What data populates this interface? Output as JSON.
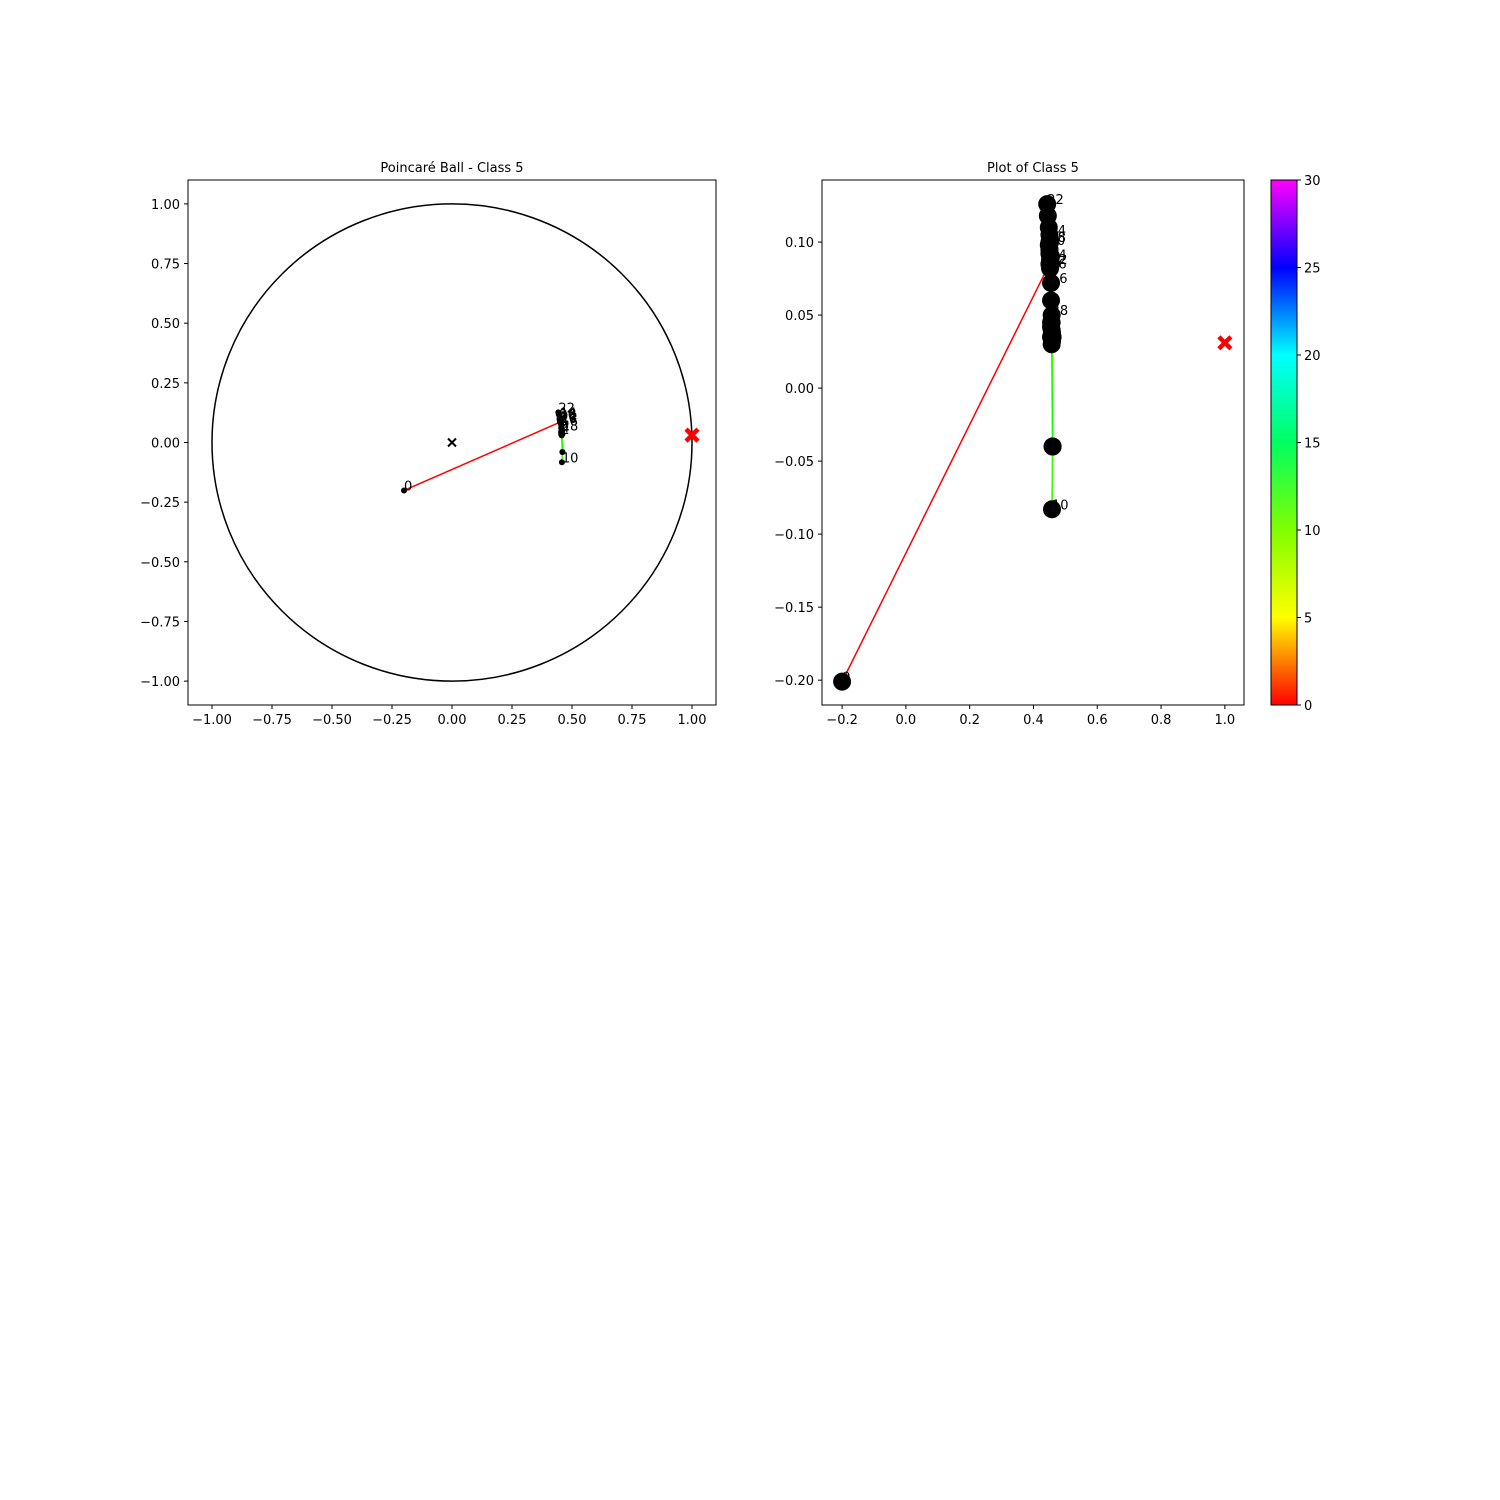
{
  "chart_data": [
    {
      "type": "scatter",
      "title": "Poincaré Ball - Class 5",
      "x": [
        -0.2,
        0.45,
        0.455,
        0.455,
        0.455,
        0.457,
        0.458,
        0.458,
        0.46,
        0.46,
        0.458,
        0.46,
        0.455,
        0.455,
        0.45,
        0.452,
        0.455,
        0.45,
        0.45,
        0.45,
        0.448,
        0.445,
        0.443,
        0.448,
        0.452,
        0.45,
        0.452,
        0.455,
        0.457,
        0.457,
        0.457
      ],
      "y": [
        -0.201,
        0.085,
        0.035,
        0.045,
        0.042,
        0.03,
        0.038,
        0.032,
        0.035,
        -0.04,
        -0.083,
        -0.04,
        0.085,
        0.09,
        0.105,
        0.1,
        0.072,
        0.095,
        0.1,
        0.092,
        0.098,
        0.118,
        0.126,
        0.11,
        0.088,
        0.095,
        0.082,
        0.06,
        0.05,
        0.045,
        0.04
      ],
      "labels": [
        "0",
        null,
        "2",
        null,
        "4",
        null,
        null,
        null,
        null,
        null,
        "10",
        null,
        "12",
        null,
        "14",
        null,
        "16",
        null,
        "18",
        null,
        "20",
        null,
        "22",
        null,
        "24",
        null,
        "26",
        null,
        "28",
        null,
        null
      ],
      "markers": [
        {
          "x": 0,
          "y": 0,
          "color": "#000000"
        },
        {
          "x": 1.0,
          "y": 0.031,
          "color": "#ff0000"
        }
      ],
      "unit_circle": true,
      "xlim": [
        -1.1,
        1.1
      ],
      "ylim": [
        -1.1,
        1.1
      ],
      "xticks": [
        {
          "value": -1,
          "label": "−1.00"
        },
        {
          "value": -0.75,
          "label": "−0.75"
        },
        {
          "value": -0.5,
          "label": "−0.50"
        },
        {
          "value": -0.25,
          "label": "−0.25"
        },
        {
          "value": 0,
          "label": "0.00"
        },
        {
          "value": 0.25,
          "label": "0.25"
        },
        {
          "value": 0.5,
          "label": "0.50"
        },
        {
          "value": 0.75,
          "label": "0.75"
        },
        {
          "value": 1,
          "label": "1.00"
        }
      ],
      "yticks": [
        {
          "value": -1,
          "label": "−1.00"
        },
        {
          "value": -0.75,
          "label": "−0.75"
        },
        {
          "value": -0.5,
          "label": "−0.50"
        },
        {
          "value": -0.25,
          "label": "−0.25"
        },
        {
          "value": 0,
          "label": "0.00"
        },
        {
          "value": 0.25,
          "label": "0.25"
        },
        {
          "value": 0.5,
          "label": "0.50"
        },
        {
          "value": 0.75,
          "label": "0.75"
        },
        {
          "value": 1,
          "label": "1.00"
        }
      ]
    },
    {
      "type": "scatter",
      "title": "Plot of Class 5",
      "x": [
        -0.2,
        0.45,
        0.455,
        0.455,
        0.455,
        0.457,
        0.458,
        0.458,
        0.46,
        0.46,
        0.458,
        0.46,
        0.455,
        0.455,
        0.45,
        0.452,
        0.455,
        0.45,
        0.45,
        0.45,
        0.448,
        0.445,
        0.443,
        0.448,
        0.452,
        0.45,
        0.452,
        0.455,
        0.457,
        0.457,
        0.457
      ],
      "y": [
        -0.201,
        0.085,
        0.035,
        0.045,
        0.042,
        0.03,
        0.038,
        0.032,
        0.035,
        -0.04,
        -0.083,
        -0.04,
        0.085,
        0.09,
        0.105,
        0.1,
        0.072,
        0.095,
        0.1,
        0.092,
        0.098,
        0.118,
        0.126,
        0.11,
        0.088,
        0.095,
        0.082,
        0.06,
        0.05,
        0.045,
        0.04
      ],
      "labels": [
        "0",
        null,
        "2",
        null,
        "4",
        null,
        null,
        null,
        null,
        null,
        "10",
        null,
        "12",
        null,
        "14",
        null,
        "16",
        null,
        "18",
        null,
        "20",
        null,
        "22",
        null,
        "24",
        null,
        "26",
        null,
        "28",
        null,
        null
      ],
      "markers": [
        {
          "x": 1.0,
          "y": 0.031,
          "color": "#ff0000"
        }
      ],
      "unit_circle": false,
      "xlim": [
        -0.263,
        1.06
      ],
      "ylim": [
        -0.217,
        0.1425
      ],
      "xticks": [
        {
          "value": -0.2,
          "label": "−0.2"
        },
        {
          "value": 0,
          "label": "0.0"
        },
        {
          "value": 0.2,
          "label": "0.2"
        },
        {
          "value": 0.4,
          "label": "0.4"
        },
        {
          "value": 0.6,
          "label": "0.6"
        },
        {
          "value": 0.8,
          "label": "0.8"
        },
        {
          "value": 1,
          "label": "1.0"
        }
      ],
      "yticks": [
        {
          "value": -0.2,
          "label": "−0.20"
        },
        {
          "value": -0.15,
          "label": "−0.15"
        },
        {
          "value": -0.1,
          "label": "−0.10"
        },
        {
          "value": -0.05,
          "label": "−0.05"
        },
        {
          "value": 0,
          "label": "0.00"
        },
        {
          "value": 0.05,
          "label": "0.05"
        },
        {
          "value": 0.1,
          "label": "0.10"
        }
      ],
      "colorbar": {
        "colormap": "hsv",
        "lim": [
          0,
          30
        ],
        "ticks": [
          0,
          5,
          10,
          15,
          20,
          25,
          30
        ]
      }
    }
  ]
}
